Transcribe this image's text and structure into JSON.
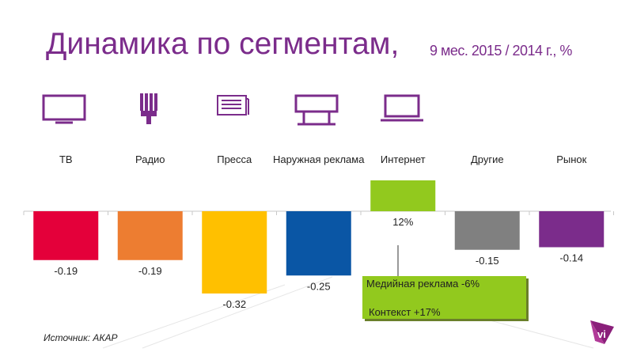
{
  "slide": {
    "title": "Динамика по сегментам,",
    "subtitle": "9 мес. 2015 / 2014 г., %",
    "source": "Источник: АКАР"
  },
  "icons": [
    "tv-icon",
    "radio-icon",
    "press-icon",
    "billboard-icon",
    "laptop-icon"
  ],
  "colors": {
    "title": "#7b2c8b",
    "icon": "#7b2c8b",
    "tv": "#e4003a",
    "radio": "#ed7d31",
    "press": "#ffc000",
    "outdoor": "#0a56a5",
    "internet": "#92c91e",
    "other": "#808080",
    "market": "#7b2c8b"
  },
  "chart_data": {
    "type": "bar",
    "categories": [
      "ТВ",
      "Радио",
      "Пресса",
      "Наружная реклама",
      "Интернет",
      "Другие",
      "Рынок"
    ],
    "values": [
      -0.19,
      -0.19,
      -0.32,
      -0.25,
      0.12,
      -0.15,
      -0.14
    ],
    "labels": [
      "-0.19",
      "-0.19",
      "-0.32",
      "-0.25",
      "12%",
      "-0.15",
      "-0.14"
    ],
    "colors": [
      "#e4003a",
      "#ed7d31",
      "#ffc000",
      "#0a56a5",
      "#92c91e",
      "#808080",
      "#7b2c8b"
    ],
    "callout": {
      "category": "Интернет",
      "items": [
        "Медийная реклама  -6%",
        "Контекст  +17%"
      ]
    }
  }
}
